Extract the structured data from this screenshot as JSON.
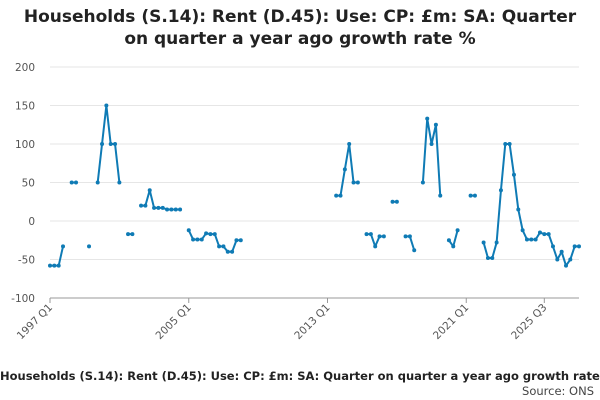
{
  "chart_data": {
    "type": "line",
    "title": "Households (S.14): Rent (D.45): Use: CP: £m: SA: Quarter on quarter a year ago growth rate %",
    "footer_title": "Households (S.14): Rent (D.45): Use: CP: £m: SA: Quarter on quarter a year ago growth rate %",
    "source": "Source: ONS",
    "x_start": "1997 Q1",
    "x_end": "2025 Q3",
    "x_tick_labels": [
      "1997 Q1",
      "2005 Q1",
      "2013 Q1",
      "2021 Q1",
      "2025 Q3"
    ],
    "y_ticks": [
      200,
      150,
      100,
      50,
      0,
      -50,
      -100
    ],
    "ylim": [
      -100,
      200
    ],
    "grid": true,
    "legend": "none",
    "line_color": "#0f7bb5",
    "series": [
      {
        "values": [
          -58,
          -58,
          -58,
          -33,
          null,
          50,
          50,
          null,
          null,
          -33,
          null,
          50,
          100,
          150,
          100,
          100,
          50,
          null,
          -17,
          -17,
          null,
          20,
          20,
          40,
          17,
          17,
          17,
          15,
          15,
          15,
          15,
          null,
          -12,
          -24,
          -24,
          -24,
          -16,
          -17,
          -17,
          -33,
          -33,
          -40,
          -40,
          -25,
          -25,
          null,
          null,
          null,
          null,
          null,
          null,
          null,
          null,
          null,
          null,
          null,
          null,
          null,
          null,
          null,
          null,
          null,
          null,
          null,
          null,
          null,
          33,
          33,
          67,
          100,
          50,
          50,
          null,
          -17,
          -17,
          -33,
          -20,
          -20,
          null,
          25,
          25,
          null,
          -20,
          -20,
          -38,
          null,
          50,
          133,
          100,
          125,
          33,
          null,
          -25,
          -33,
          -12,
          null,
          null,
          33,
          33,
          null,
          -28,
          -48,
          -48,
          -28,
          40,
          100,
          100,
          60,
          15,
          -12,
          -24,
          -24,
          -24,
          -15,
          -17,
          -17,
          -33,
          -50,
          -40,
          -58,
          -50,
          -33,
          -33
        ]
      }
    ]
  }
}
